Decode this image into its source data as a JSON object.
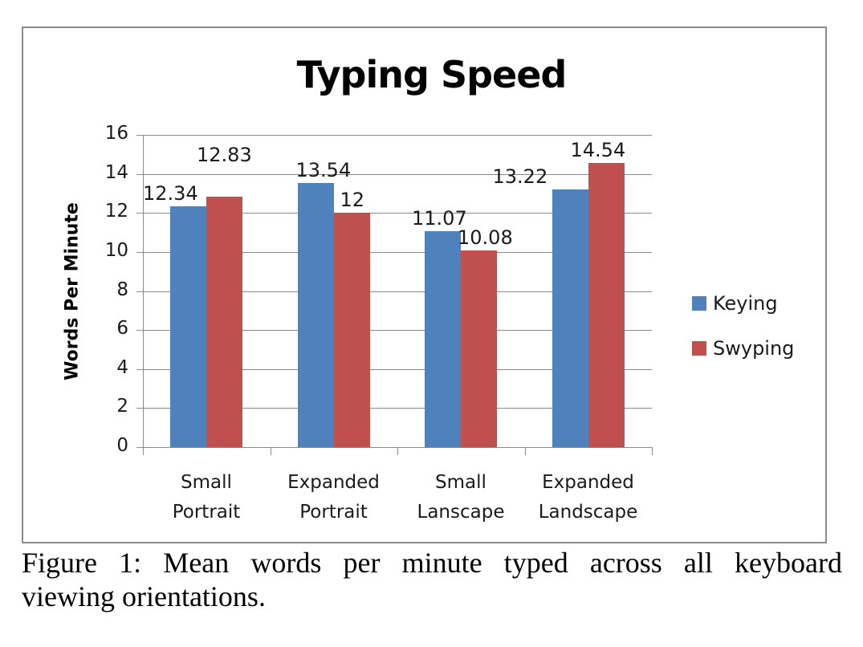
{
  "chart_data": {
    "type": "bar",
    "title": "Typing Speed",
    "xlabel": "",
    "ylabel": "Words Per Minute",
    "ylim": [
      0,
      16
    ],
    "yticks": [
      0,
      2,
      4,
      6,
      8,
      10,
      12,
      14,
      16
    ],
    "grid": true,
    "legend_position": "right",
    "categories": [
      "Small Portrait",
      "Expanded Portrait",
      "Small Lanscape",
      "Expanded Landscape"
    ],
    "category_lines": [
      [
        "Small",
        "Portrait"
      ],
      [
        "Expanded",
        "Portrait"
      ],
      [
        "Small",
        "Lanscape"
      ],
      [
        "Expanded",
        "Landscape"
      ]
    ],
    "series": [
      {
        "name": "Keying",
        "color": "#4f81bd",
        "values": [
          12.34,
          13.54,
          11.07,
          13.22
        ],
        "labels": [
          "12.34",
          "13.54",
          "11.07",
          "13.22"
        ]
      },
      {
        "name": "Swyping",
        "color": "#c0504d",
        "values": [
          12.83,
          12,
          10.08,
          14.54
        ],
        "labels": [
          "12.83",
          "12",
          "10.08",
          "14.54"
        ]
      }
    ]
  },
  "caption": {
    "line1": "Figure 1: Mean words per minute typed across all keyboard",
    "line2": "viewing orientations."
  }
}
